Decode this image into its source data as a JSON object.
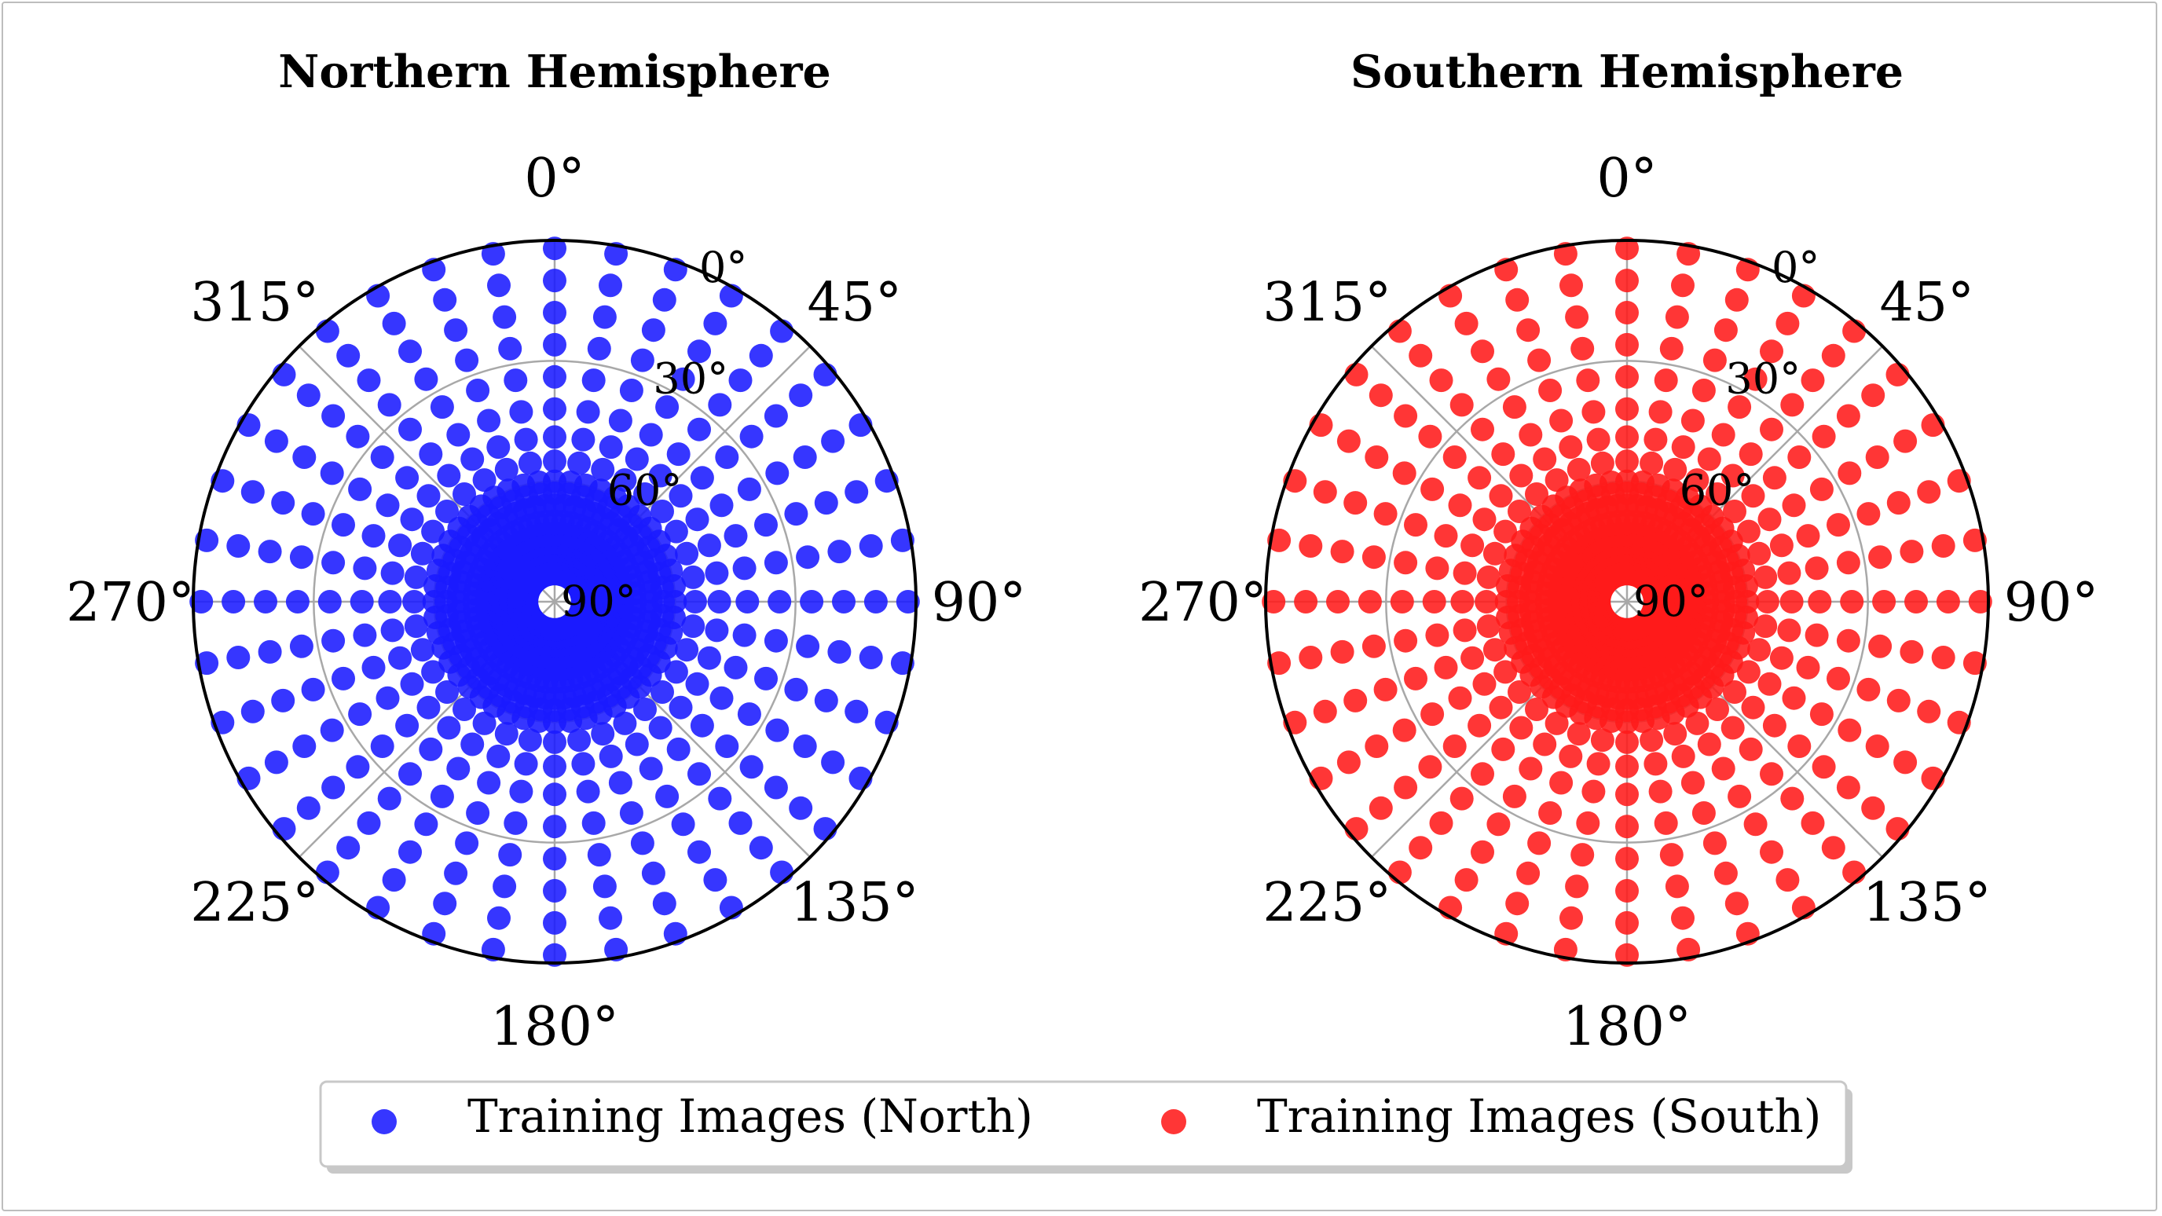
{
  "chart_data": [
    {
      "type": "scatter",
      "projection": "polar",
      "title": "Northern Hemisphere",
      "theta_zero_location": "top",
      "theta_direction": "clockwise",
      "theta_tick_labels": [
        "0°",
        "45°",
        "90°",
        "135°",
        "180°",
        "225°",
        "270°",
        "315°"
      ],
      "r_tick_labels": [
        "0°",
        "30°",
        "60°",
        "90°"
      ],
      "r_axis": "elevation, 90° at center, 0° at rim",
      "grid": true,
      "series": [
        {
          "name": "Training Images (North)",
          "color": "#1a1aff",
          "rings": [
            {
              "elevation": 2,
              "count": 36
            },
            {
              "elevation": 10,
              "count": 36
            },
            {
              "elevation": 18,
              "count": 36
            },
            {
              "elevation": 26,
              "count": 36
            },
            {
              "elevation": 34,
              "count": 36
            },
            {
              "elevation": 42,
              "count": 36
            },
            {
              "elevation": 49,
              "count": 36
            },
            {
              "elevation": 55,
              "count": 36
            },
            {
              "elevation": 60,
              "count": 48
            },
            {
              "elevation": 63,
              "count": 48
            },
            {
              "elevation": 66,
              "count": 60
            },
            {
              "elevation": 70,
              "count": 60
            },
            {
              "elevation": 73,
              "count": 60
            },
            {
              "elevation": 76,
              "count": 60
            },
            {
              "elevation": 79,
              "count": 60
            },
            {
              "elevation": 81,
              "count": 60
            },
            {
              "elevation": 83,
              "count": 60
            }
          ]
        }
      ]
    },
    {
      "type": "scatter",
      "projection": "polar",
      "title": "Southern Hemisphere",
      "theta_zero_location": "top",
      "theta_direction": "clockwise",
      "theta_tick_labels": [
        "0°",
        "45°",
        "90°",
        "135°",
        "180°",
        "225°",
        "270°",
        "315°"
      ],
      "r_tick_labels": [
        "0°",
        "30°",
        "60°",
        "90°"
      ],
      "r_axis": "elevation, 90° at center, 0° at rim",
      "grid": true,
      "series": [
        {
          "name": "Training Images (South)",
          "color": "#ff1a1a",
          "rings": [
            {
              "elevation": 2,
              "count": 36
            },
            {
              "elevation": 10,
              "count": 36
            },
            {
              "elevation": 18,
              "count": 36
            },
            {
              "elevation": 26,
              "count": 36
            },
            {
              "elevation": 34,
              "count": 36
            },
            {
              "elevation": 42,
              "count": 36
            },
            {
              "elevation": 49,
              "count": 36
            },
            {
              "elevation": 55,
              "count": 36
            },
            {
              "elevation": 60,
              "count": 48
            },
            {
              "elevation": 63,
              "count": 48
            },
            {
              "elevation": 66,
              "count": 60
            },
            {
              "elevation": 70,
              "count": 60
            },
            {
              "elevation": 73,
              "count": 60
            },
            {
              "elevation": 76,
              "count": 60
            },
            {
              "elevation": 79,
              "count": 60
            },
            {
              "elevation": 81,
              "count": 60
            },
            {
              "elevation": 83,
              "count": 60
            }
          ]
        }
      ]
    }
  ],
  "legend": {
    "placement": "bottom-center",
    "entries": [
      {
        "label": "Training Images (North)",
        "color": "#1a1aff"
      },
      {
        "label": "Training Images (South)",
        "color": "#ff1a1a"
      }
    ]
  }
}
